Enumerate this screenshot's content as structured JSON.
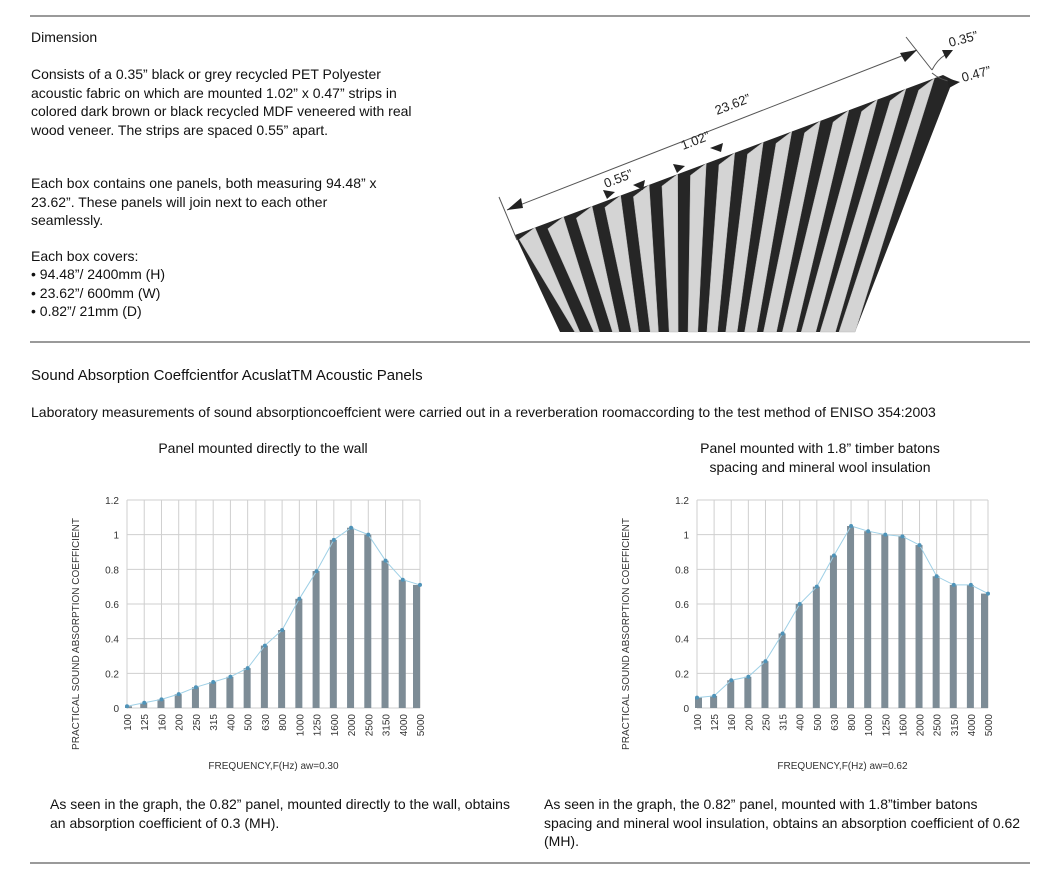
{
  "dimension": {
    "heading": "Dimension",
    "paragraph1": "Consists of a 0.35” black or grey recycled PET Polyester acoustic fabric on which are mounted 1.02” x 0.47” strips in colored dark brown or black recycled MDF veneered with real wood veneer. The strips are spaced 0.55” apart.",
    "paragraph2": "Each box contains one panels, both measuring 94.48” x 23.62”. These panels will join next to each other seamlessly.",
    "covers_heading": "Each box covers:",
    "covers": [
      "• 94.48”/ 2400mm (H)",
      "• 23.62”/ 600mm (W)",
      "• 0.82”/ 21mm (D)"
    ]
  },
  "diagram": {
    "labels": {
      "width": "23.62”",
      "strip": "1.02”",
      "gap": "0.55”",
      "fabric": "0.35”",
      "depth": "0.47”"
    },
    "colors": {
      "backing": "#262626",
      "strip": "#d4d4d4"
    }
  },
  "absorption": {
    "title": "Sound Absorption Coeffcientfor AcuslatTM Acoustic Panels",
    "intro": "Laboratory measurements of sound absorptioncoeffcient were carried out in a reverberation roomaccording to the test method of ENISO 354:2003",
    "caption_left": "As seen in the graph, the 0.82” panel, mounted directly to the wall, obtains an absorption coefficient of 0.3 (MH).",
    "caption_right": "As seen in the graph, the 0.82” panel, mounted with 1.8”timber batons spacing and mineral wool insulation, obtains an absorption coefficient of 0.62 (MH)."
  },
  "chart_data": [
    {
      "type": "bar",
      "title": "Panel mounted directly to the wall",
      "xlabel": "FREQUENCY,F(Hz)  aw=0.30",
      "ylabel": "PRACTICAL SOUND ABSORPTION COEFFICIENT",
      "categories": [
        "100",
        "125",
        "160",
        "200",
        "250",
        "315",
        "400",
        "500",
        "630",
        "800",
        "1000",
        "1250",
        "1600",
        "2000",
        "2500",
        "3150",
        "4000",
        "5000"
      ],
      "values": [
        0.01,
        0.03,
        0.05,
        0.08,
        0.12,
        0.15,
        0.18,
        0.23,
        0.36,
        0.45,
        0.63,
        0.79,
        0.97,
        1.04,
        1.0,
        0.85,
        0.74,
        0.71
      ],
      "yticks": [
        "0",
        "0.2",
        "0.4",
        "0.6",
        "0.8",
        "1",
        "1.2"
      ],
      "ylim": [
        0,
        1.2
      ],
      "grid": true,
      "overlay_line": true,
      "colors": {
        "bar": "#7d8c96",
        "line": "#9fd0e6",
        "marker": "#4f93b8"
      }
    },
    {
      "type": "bar",
      "title": "Panel mounted with 1.8” timber batons spacing and mineral wool insulation",
      "xlabel": "FREQUENCY,F(Hz)  aw=0.62",
      "ylabel": "PRACTICAL SOUND ABSORPTION COEFFICIENT",
      "categories": [
        "100",
        "125",
        "160",
        "200",
        "250",
        "315",
        "400",
        "500",
        "630",
        "800",
        "1000",
        "1250",
        "1600",
        "2000",
        "2500",
        "3150",
        "4000",
        "5000"
      ],
      "values": [
        0.06,
        0.07,
        0.16,
        0.18,
        0.27,
        0.43,
        0.6,
        0.7,
        0.88,
        1.05,
        1.02,
        1.0,
        0.99,
        0.94,
        0.76,
        0.71,
        0.71,
        0.66
      ],
      "yticks": [
        "0",
        "0.2",
        "0.4",
        "0.6",
        "0.8",
        "1",
        "1.2"
      ],
      "ylim": [
        0,
        1.2
      ],
      "grid": true,
      "overlay_line": true,
      "colors": {
        "bar": "#7d8c96",
        "line": "#9fd0e6",
        "marker": "#4f93b8"
      }
    }
  ]
}
